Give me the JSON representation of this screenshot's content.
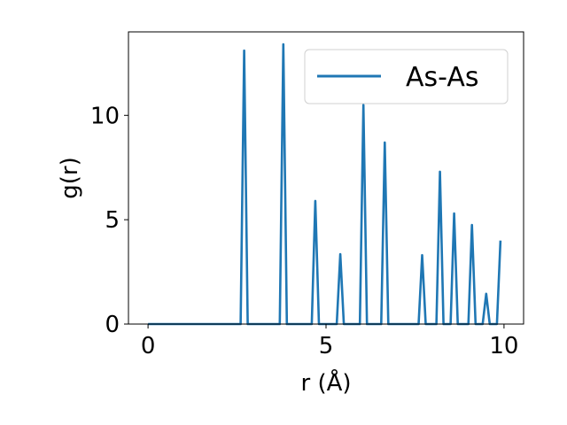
{
  "chart_data": {
    "type": "line",
    "xlabel": "r (Å)",
    "ylabel": "g(r)",
    "xlim": [
      -0.55,
      10.55
    ],
    "ylim": [
      0,
      14
    ],
    "x_ticks": [
      0,
      5,
      10
    ],
    "y_ticks": [
      0,
      5,
      10
    ],
    "x_tick_labels": [
      "0",
      "5",
      "10"
    ],
    "y_tick_labels": [
      "0",
      "5",
      "10"
    ],
    "grid": false,
    "legend_position": "top-right",
    "series": [
      {
        "name": "As-As",
        "color": "#1f77b4",
        "x": [
          0.0,
          2.6,
          2.7,
          2.8,
          3.7,
          3.8,
          3.9,
          4.6,
          4.7,
          4.8,
          5.3,
          5.4,
          5.5,
          5.95,
          6.05,
          6.15,
          6.55,
          6.65,
          6.75,
          7.6,
          7.7,
          7.8,
          8.1,
          8.2,
          8.3,
          8.5,
          8.6,
          8.7,
          9.0,
          9.1,
          9.2,
          9.4,
          9.5,
          9.6,
          9.8,
          9.9
        ],
        "y": [
          0,
          0,
          13.1,
          0,
          0,
          13.4,
          0,
          0,
          5.9,
          0,
          0,
          3.35,
          0,
          0,
          10.5,
          0,
          0,
          8.7,
          0,
          0,
          3.3,
          0,
          0,
          7.3,
          0,
          0,
          5.3,
          0,
          0,
          4.75,
          0,
          0,
          1.45,
          0,
          0,
          4.0
        ]
      }
    ]
  }
}
